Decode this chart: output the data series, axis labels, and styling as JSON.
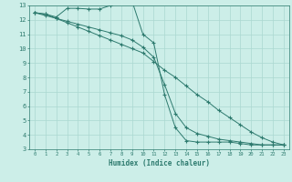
{
  "xlabel": "Humidex (Indice chaleur)",
  "bg_color": "#cceee8",
  "grid_color": "#aad8d0",
  "line_color": "#2d7a6e",
  "xlim": [
    -0.5,
    23.5
  ],
  "ylim": [
    3,
    13
  ],
  "yticks": [
    3,
    4,
    5,
    6,
    7,
    8,
    9,
    10,
    11,
    12,
    13
  ],
  "xticks": [
    0,
    1,
    2,
    3,
    4,
    5,
    6,
    7,
    8,
    9,
    10,
    11,
    12,
    13,
    14,
    15,
    16,
    17,
    18,
    19,
    20,
    21,
    22,
    23
  ],
  "line1_x": [
    0,
    1,
    2,
    3,
    4,
    5,
    6,
    7,
    8,
    9,
    10,
    11,
    12,
    13,
    14,
    15,
    16,
    17,
    18,
    19,
    20,
    21,
    22,
    23
  ],
  "line1_y": [
    12.5,
    12.4,
    12.2,
    12.8,
    12.8,
    12.75,
    12.75,
    13.0,
    13.25,
    13.3,
    11.0,
    10.4,
    6.8,
    4.5,
    3.6,
    3.5,
    3.5,
    3.5,
    3.5,
    3.4,
    3.3,
    3.3,
    3.3,
    3.3
  ],
  "line2_x": [
    0,
    1,
    2,
    3,
    4,
    5,
    6,
    7,
    8,
    9,
    10,
    11,
    12,
    13,
    14,
    15,
    16,
    17,
    18,
    19,
    20,
    21,
    22,
    23
  ],
  "line2_y": [
    12.5,
    12.3,
    12.1,
    11.8,
    11.5,
    11.2,
    10.9,
    10.6,
    10.3,
    10.0,
    9.7,
    9.1,
    8.5,
    8.0,
    7.4,
    6.8,
    6.3,
    5.7,
    5.2,
    4.7,
    4.2,
    3.8,
    3.5,
    3.3
  ],
  "line3_x": [
    0,
    1,
    2,
    3,
    4,
    5,
    6,
    7,
    8,
    9,
    10,
    11,
    12,
    13,
    14,
    15,
    16,
    17,
    18,
    19,
    20,
    21,
    22,
    23
  ],
  "line3_y": [
    12.5,
    12.4,
    12.1,
    11.9,
    11.7,
    11.5,
    11.3,
    11.1,
    10.9,
    10.6,
    10.1,
    9.4,
    7.5,
    5.5,
    4.5,
    4.1,
    3.9,
    3.7,
    3.6,
    3.5,
    3.4,
    3.3,
    3.3,
    3.3
  ]
}
